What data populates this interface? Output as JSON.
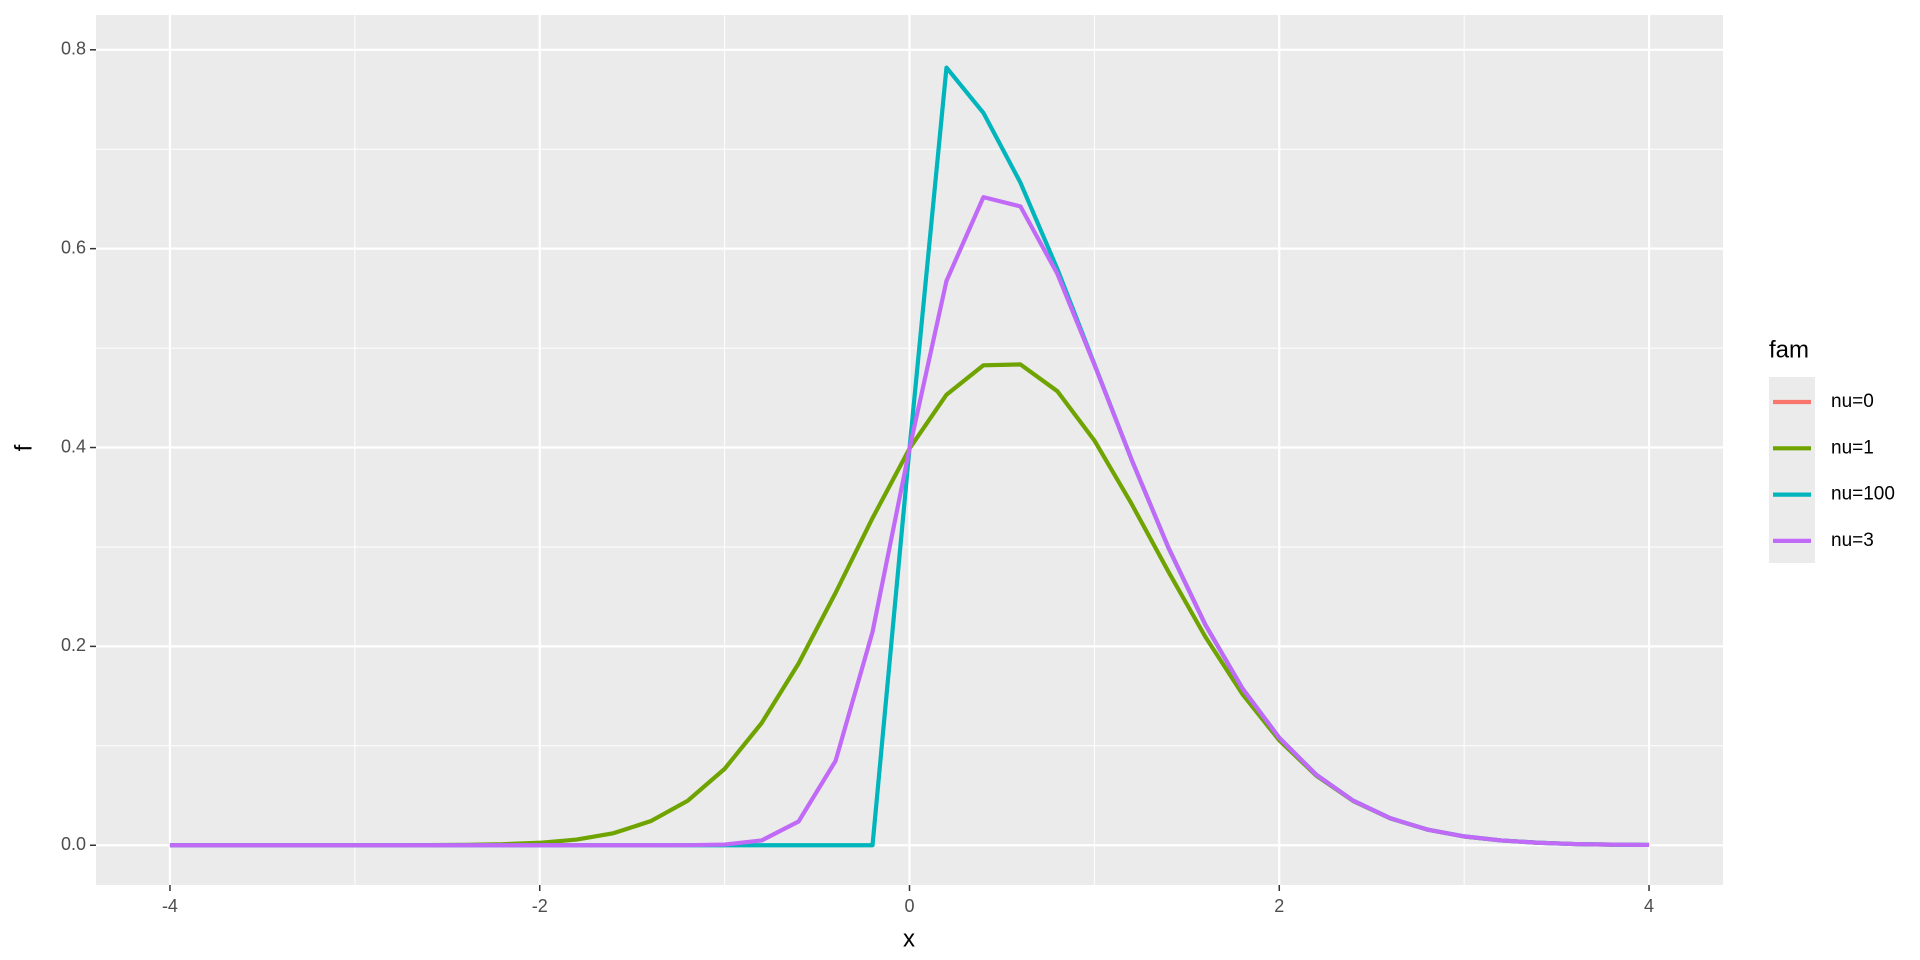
{
  "chart_data": {
    "type": "line",
    "x_label": "x",
    "y_label": "f",
    "legend_title": "fam",
    "x": [
      -4,
      -3.8,
      -3.6,
      -3.4,
      -3.2,
      -3,
      -2.8,
      -2.6,
      -2.4,
      -2.2,
      -2,
      -1.8,
      -1.6,
      -1.4,
      -1.2,
      -1,
      -0.8,
      -0.6,
      -0.4,
      -0.2,
      0,
      0.2,
      0.4,
      0.6,
      0.8,
      1,
      1.2,
      1.4,
      1.6,
      1.8,
      2,
      2.2,
      2.4,
      2.6,
      2.8,
      3,
      3.2,
      3.4,
      3.6,
      3.8,
      4
    ],
    "series": [
      {
        "name": "nu=0",
        "color": "#F8766D",
        "values": [
          null,
          null,
          null,
          null,
          null,
          null,
          null,
          null,
          null,
          null,
          null,
          null,
          null,
          null,
          null,
          null,
          null,
          null,
          null,
          null,
          null,
          null,
          null,
          null,
          null,
          null,
          null,
          null,
          null,
          null,
          null,
          null,
          null,
          null,
          null,
          null,
          null,
          null,
          null,
          null,
          null
        ]
      },
      {
        "name": "nu=1",
        "color": "#6FA300",
        "values": [
          0,
          0,
          0,
          0,
          0,
          0,
          4e-05,
          0.00013,
          0.00037,
          0.00099,
          0.00246,
          0.00567,
          0.01216,
          0.0242,
          0.0447,
          0.0768,
          0.1228,
          0.1828,
          0.2538,
          0.329,
          0.3989,
          0.4531,
          0.4827,
          0.4836,
          0.4566,
          0.4071,
          0.3437,
          0.2753,
          0.2097,
          0.1522,
          0.1055,
          0.07,
          0.0444,
          0.027,
          0.0158,
          0.0088,
          0.0048,
          0.0025,
          0.0012,
          0.0006,
          0.0003
        ]
      },
      {
        "name": "nu=100",
        "color": "#00B5BC",
        "values": [
          0,
          0,
          0,
          0,
          0,
          0,
          0,
          0,
          0,
          0,
          0,
          0,
          0,
          0,
          0,
          0,
          0,
          0,
          0,
          0,
          0.3989,
          0.7821,
          0.7365,
          0.6664,
          0.5794,
          0.4839,
          0.3884,
          0.2995,
          0.2218,
          0.1579,
          0.108,
          0.0709,
          0.0448,
          0.0272,
          0.0158,
          0.0089,
          0.0048,
          0.0025,
          0.0012,
          0.0006,
          0.0003
        ]
      },
      {
        "name": "nu=3",
        "color": "#C06AF7",
        "values": [
          0,
          0,
          0,
          0,
          0,
          0,
          0,
          0,
          0,
          0,
          0,
          0,
          0,
          0,
          6e-05,
          0.00065,
          0.0048,
          0.0239,
          0.0848,
          0.2145,
          0.3989,
          0.5676,
          0.6518,
          0.6425,
          0.5746,
          0.4833,
          0.3883,
          0.2995,
          0.2218,
          0.1579,
          0.108,
          0.0709,
          0.0448,
          0.0272,
          0.0158,
          0.0089,
          0.0048,
          0.0025,
          0.0012,
          0.0006,
          0.0003
        ]
      }
    ],
    "xlim": [
      -4.4,
      4.4
    ],
    "ylim": [
      -0.04,
      0.835
    ],
    "xticks": [
      -4,
      -2,
      0,
      2,
      4
    ],
    "yticks": [
      {
        "value": 0,
        "label": "0.0"
      },
      0.2,
      0.4,
      0.6,
      0.8
    ],
    "grid": true,
    "legend": "right"
  }
}
